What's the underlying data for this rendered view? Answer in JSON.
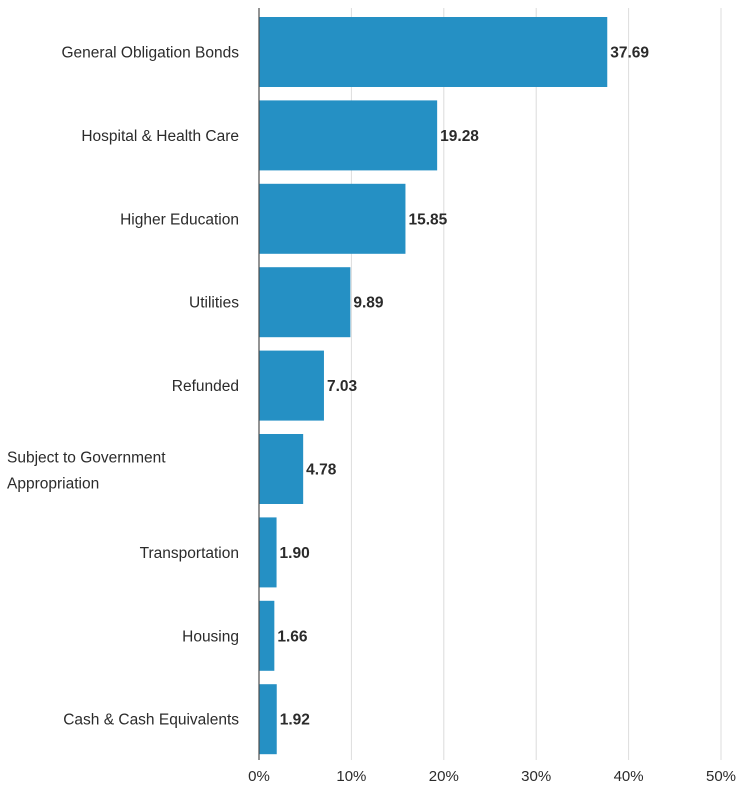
{
  "chart_data": {
    "type": "bar",
    "orientation": "horizontal",
    "categories": [
      [
        "General Obligation Bonds"
      ],
      [
        "Hospital & Health Care"
      ],
      [
        "Higher Education"
      ],
      [
        "Utilities"
      ],
      [
        "Refunded"
      ],
      [
        "Subject to Government",
        "Appropriation"
      ],
      [
        "Transportation"
      ],
      [
        "Housing"
      ],
      [
        "Cash & Cash Equivalents"
      ]
    ],
    "values": [
      37.69,
      19.28,
      15.85,
      9.89,
      7.03,
      4.78,
      1.9,
      1.66,
      1.92
    ],
    "value_labels": [
      "37.69",
      "19.28",
      "15.85",
      "9.89",
      "7.03",
      "4.78",
      "1.90",
      "1.66",
      "1.92"
    ],
    "xlim": [
      0,
      50
    ],
    "x_ticks": [
      0,
      10,
      20,
      30,
      40,
      50
    ],
    "x_tick_labels": [
      "0%",
      "10%",
      "20%",
      "30%",
      "40%",
      "50%"
    ],
    "grid": true,
    "bar_color": "#2590c4",
    "grid_color": "#dcdcdc",
    "axis_color": "#4d4d4d",
    "text_color": "#2b2b2b"
  }
}
